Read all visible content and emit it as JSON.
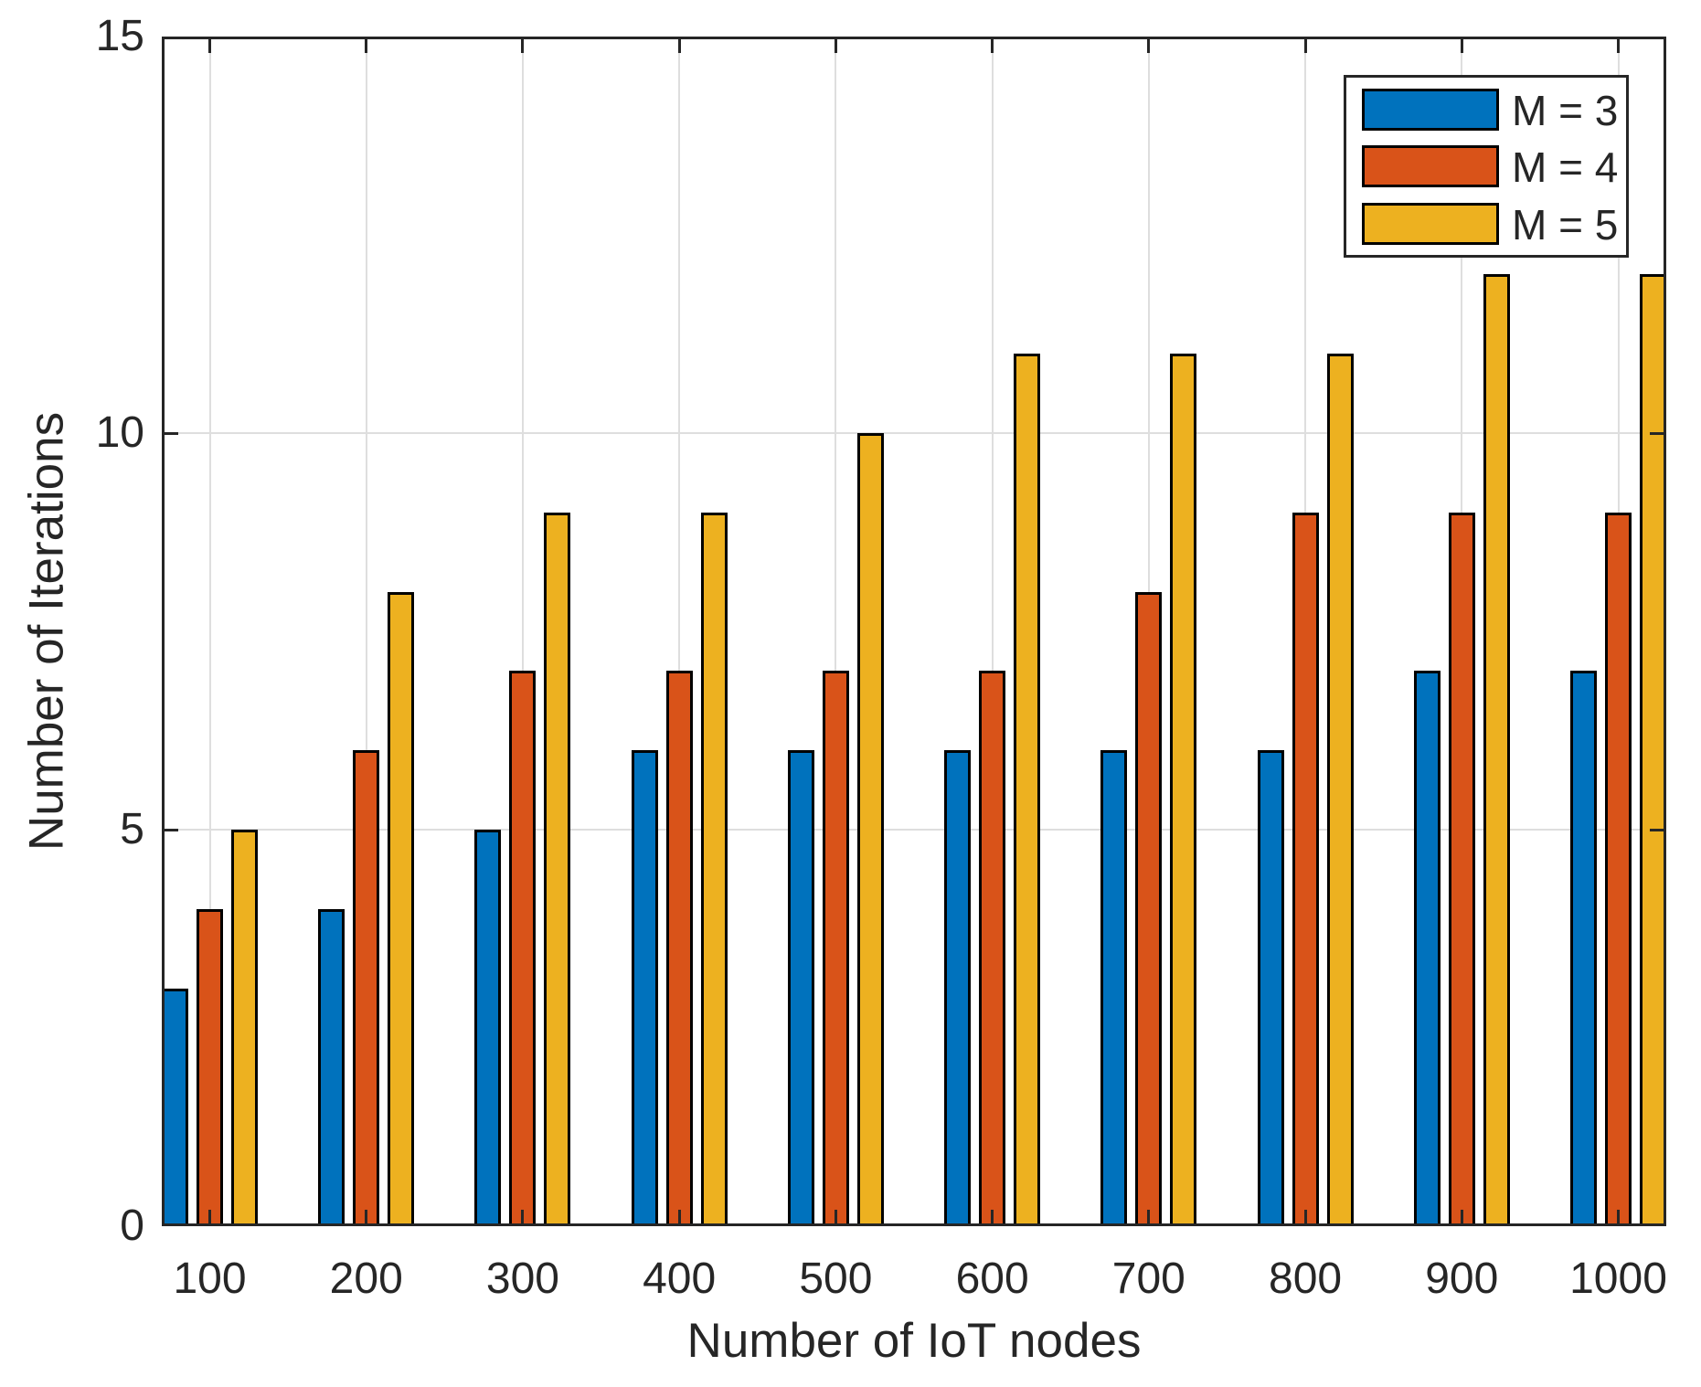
{
  "chart_data": {
    "type": "bar",
    "title": "",
    "xlabel": "Number of IoT nodes",
    "ylabel": "Number of Iterations",
    "categories": [
      "100",
      "200",
      "300",
      "400",
      "500",
      "600",
      "700",
      "800",
      "900",
      "1000"
    ],
    "series": [
      {
        "name": "M = 3",
        "color": "#0072BD",
        "values": [
          3,
          4,
          5,
          6,
          6,
          6,
          6,
          6,
          7,
          7
        ]
      },
      {
        "name": "M = 4",
        "color": "#D95319",
        "values": [
          4,
          6,
          7,
          7,
          7,
          7,
          8,
          9,
          9,
          9
        ]
      },
      {
        "name": "M = 5",
        "color": "#EDB120",
        "values": [
          5,
          8,
          9,
          9,
          10,
          11,
          11,
          11,
          12,
          12
        ]
      }
    ],
    "ylim": [
      0,
      15
    ],
    "yticks": [
      0,
      5,
      10,
      15
    ],
    "grid": true,
    "legend_position": "top-right"
  },
  "colors": {
    "axis": "#262626",
    "grid": "#DEDEDE",
    "bar_edge": "#000000",
    "background": "#FFFFFF"
  }
}
